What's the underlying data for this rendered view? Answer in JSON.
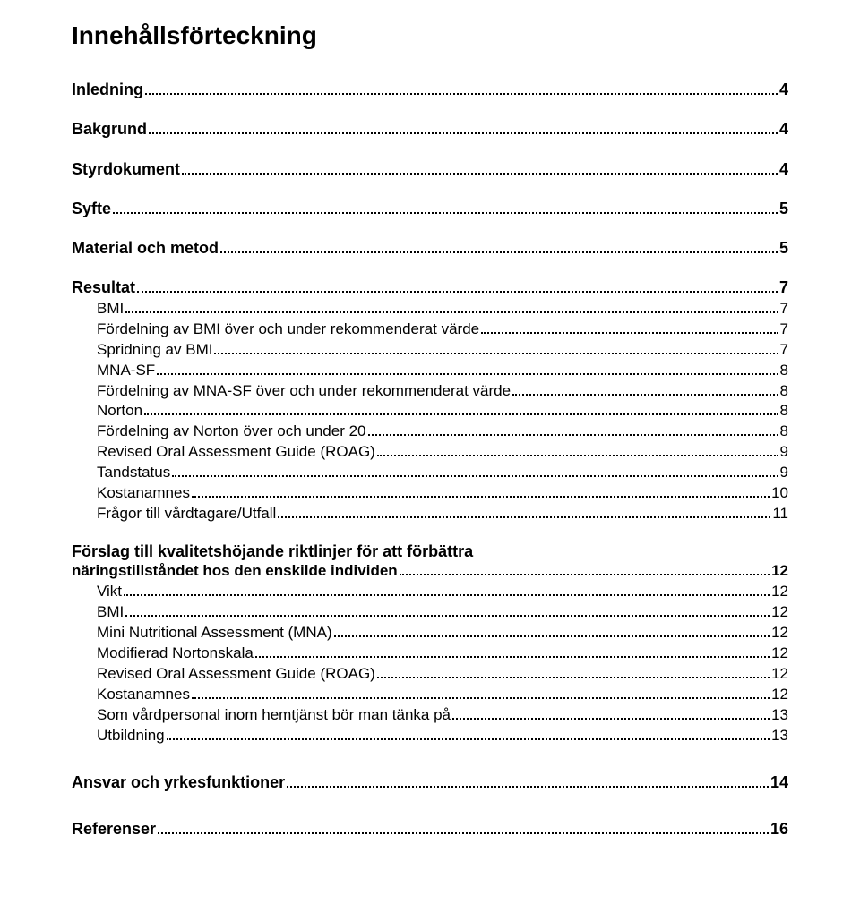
{
  "title": "Innehållsförteckning",
  "entries": [
    {
      "type": "top",
      "label": "Inledning",
      "page": "4"
    },
    {
      "type": "top",
      "label": "Bakgrund",
      "page": "4"
    },
    {
      "type": "top",
      "label": "Styrdokument",
      "page": "4"
    },
    {
      "type": "top",
      "label": "Syfte",
      "page": "5"
    },
    {
      "type": "top",
      "label": "Material och metod",
      "page": "5"
    },
    {
      "type": "top",
      "label": "Resultat",
      "page": "7"
    },
    {
      "type": "sub",
      "label": "BMI",
      "page": "7"
    },
    {
      "type": "sub",
      "label": "Fördelning av BMI över och under rekommenderat värde",
      "page": "7"
    },
    {
      "type": "sub",
      "label": "Spridning av BMI",
      "page": "7"
    },
    {
      "type": "sub",
      "label": "MNA-SF",
      "page": "8"
    },
    {
      "type": "sub",
      "label": "Fördelning av MNA-SF över och under rekommenderat värde",
      "page": "8"
    },
    {
      "type": "sub",
      "label": "Norton",
      "page": "8"
    },
    {
      "type": "sub",
      "label": "Fördelning av Norton över och under 20",
      "page": "8"
    },
    {
      "type": "sub",
      "label": "Revised Oral Assessment Guide (ROAG)",
      "page": "9"
    },
    {
      "type": "sub",
      "label": "Tandstatus",
      "page": "9"
    },
    {
      "type": "sub",
      "label": "Kostanamnes",
      "page": "10"
    },
    {
      "type": "sub",
      "label": "Frågor till vårdtagare/Utfall",
      "page": "11"
    },
    {
      "type": "multitop",
      "first": "Förslag till kvalitetshöjande riktlinjer för att förbättra",
      "label": "näringstillståndet hos den enskilde individen",
      "page": "12"
    },
    {
      "type": "sub",
      "label": "Vikt",
      "page": "12"
    },
    {
      "type": "sub",
      "label": "BMI",
      "page": "12"
    },
    {
      "type": "sub",
      "label": "Mini Nutritional Assessment (MNA)",
      "page": "12"
    },
    {
      "type": "sub",
      "label": "Modifierad Nortonskala",
      "page": "12"
    },
    {
      "type": "sub",
      "label": "Revised Oral Assessment Guide (ROAG)",
      "page": "12"
    },
    {
      "type": "sub",
      "label": "Kostanamnes",
      "page": "12"
    },
    {
      "type": "sub",
      "label": "Som vårdpersonal inom hemtjänst bör man tänka på",
      "page": "13"
    },
    {
      "type": "sub",
      "label": "Utbildning",
      "page": "13"
    },
    {
      "type": "standalone",
      "label": "Ansvar och yrkesfunktioner",
      "page": "14"
    },
    {
      "type": "standalone",
      "label": "Referenser",
      "page": "16"
    }
  ]
}
